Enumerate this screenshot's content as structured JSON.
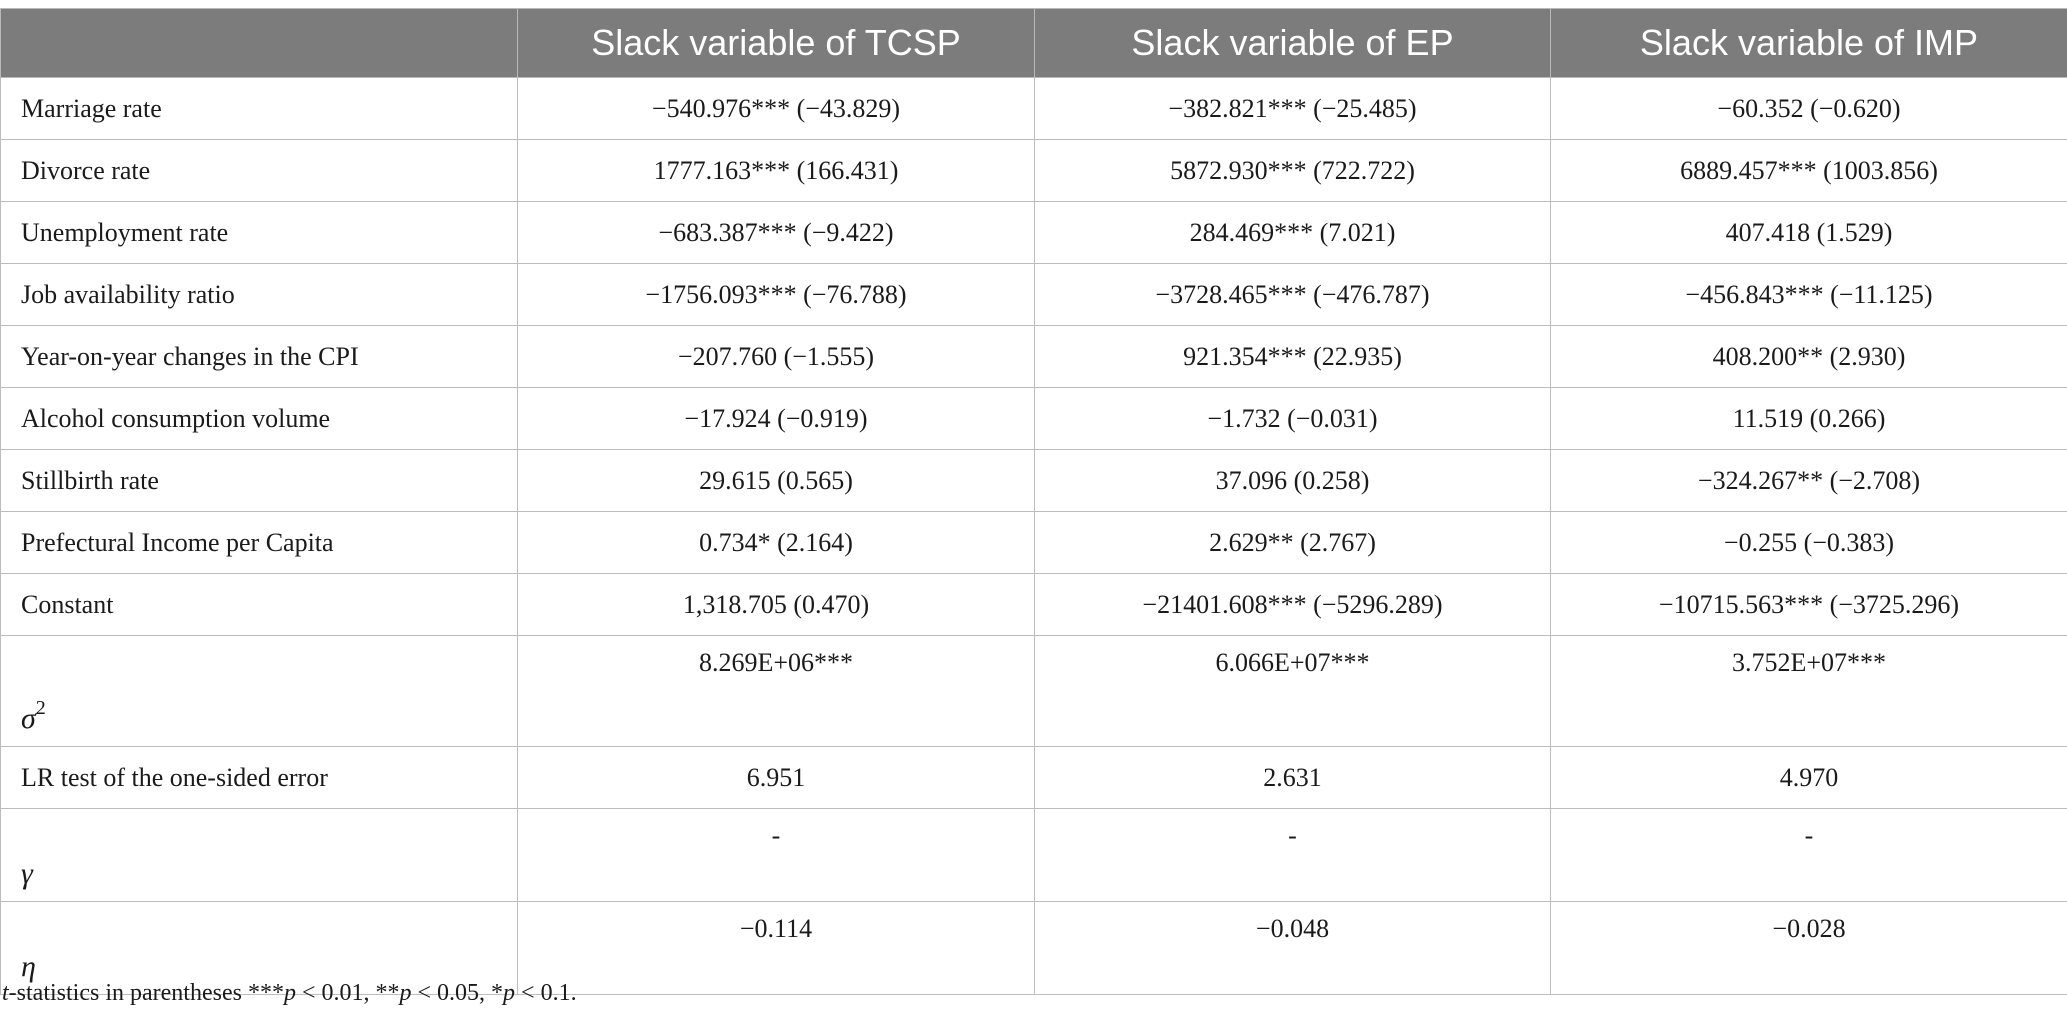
{
  "header": {
    "blank": "",
    "col1": "Slack variable of TCSP",
    "col2": "Slack variable of EP",
    "col3": "Slack variable of IMP"
  },
  "rows": [
    {
      "label": "Marriage rate",
      "tcsp": "−540.976*** (−43.829)",
      "ep": "−382.821*** (−25.485)",
      "imp": "−60.352 (−0.620)"
    },
    {
      "label": "Divorce rate",
      "tcsp": "1777.163*** (166.431)",
      "ep": "5872.930*** (722.722)",
      "imp": "6889.457*** (1003.856)"
    },
    {
      "label": "Unemployment rate",
      "tcsp": "−683.387*** (−9.422)",
      "ep": "284.469*** (7.021)",
      "imp": "407.418 (1.529)"
    },
    {
      "label": "Job availability ratio",
      "tcsp": "−1756.093*** (−76.788)",
      "ep": "−3728.465*** (−476.787)",
      "imp": "−456.843*** (−11.125)"
    },
    {
      "label": "Year-on-year changes in the CPI",
      "tcsp": "−207.760 (−1.555)",
      "ep": "921.354*** (22.935)",
      "imp": "408.200** (2.930)"
    },
    {
      "label": "Alcohol consumption volume",
      "tcsp": "−17.924 (−0.919)",
      "ep": "−1.732 (−0.031)",
      "imp": "11.519 (0.266)"
    },
    {
      "label": "Stillbirth rate",
      "tcsp": "29.615 (0.565)",
      "ep": "37.096 (0.258)",
      "imp": "−324.267** (−2.708)"
    },
    {
      "label": "Prefectural Income per Capita",
      "tcsp": "0.734* (2.164)",
      "ep": "2.629** (2.767)",
      "imp": "−0.255 (−0.383)"
    },
    {
      "label": "Constant",
      "tcsp": "1,318.705 (0.470)",
      "ep": "−21401.608*** (−5296.289)",
      "imp": "−10715.563*** (−3725.296)"
    },
    {
      "label": "σ",
      "label_sup": "2",
      "tcsp": "8.269E+06***",
      "ep": "6.066E+07***",
      "imp": "3.752E+07***"
    },
    {
      "label": "LR test of the one-sided error",
      "tcsp": "6.951",
      "ep": "2.631",
      "imp": "4.970"
    },
    {
      "label": "γ",
      "tcsp": "-",
      "ep": "-",
      "imp": "-"
    },
    {
      "label": "η",
      "tcsp": "−0.114",
      "ep": "−0.048",
      "imp": "−0.028"
    }
  ],
  "footnote": {
    "t": "t",
    "text1": "-statistics in parentheses ***",
    "p1": "p",
    "text2": " < 0.01, **",
    "p2": "p",
    "text3": " < 0.05, *",
    "p3": "p",
    "text4": " < 0.1."
  }
}
